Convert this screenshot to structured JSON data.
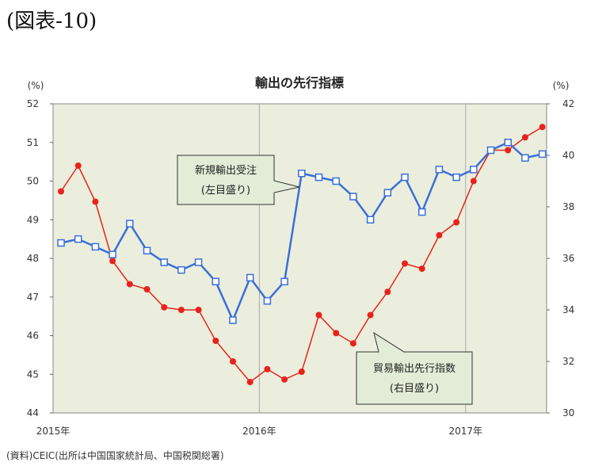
{
  "figure_label": "(図表-10)",
  "source": "(資料)CEIC(出所は中国国家統計局、中国税関総署)",
  "colors": {
    "plot_bg": "#ebeedd",
    "series_left": "#3b6fd8",
    "series_right": "#e8231d",
    "callout_bg": "#e2ecd7",
    "gridline": "#aaaaaa"
  },
  "chart_data": {
    "type": "line",
    "title": "輸出の先行指標",
    "y_left_unit": "(%)",
    "y_right_unit": "(%)",
    "y_left_lim": [
      44,
      52
    ],
    "y_left_ticks": [
      "44",
      "45",
      "46",
      "47",
      "48",
      "49",
      "50",
      "51",
      "52"
    ],
    "y_right_lim": [
      30,
      42
    ],
    "y_right_ticks": [
      "30",
      "32",
      "34",
      "36",
      "38",
      "40",
      "42"
    ],
    "x_labels": [
      "2015年",
      "2016年",
      "2017年"
    ],
    "x_label_month_index": [
      0,
      12,
      24
    ],
    "vertical_gridlines_at_month_index": [
      12,
      24
    ],
    "series": [
      {
        "name": "新規輸出受注",
        "axis": "left",
        "marker": "hollow-square",
        "callout": [
          "新規輸出受注",
          "(左目盛り)"
        ],
        "values": [
          48.4,
          48.5,
          48.3,
          48.1,
          48.9,
          48.2,
          47.9,
          47.7,
          47.9,
          47.4,
          46.4,
          47.5,
          46.9,
          47.4,
          50.2,
          50.1,
          50.0,
          49.6,
          49.0,
          49.7,
          50.1,
          49.2,
          50.3,
          50.1,
          50.3,
          50.8,
          51.0,
          50.6,
          50.7
        ]
      },
      {
        "name": "貿易輸出先行指数",
        "axis": "right",
        "marker": "filled-circle",
        "callout": [
          "貿易輸出先行指数",
          "(右目盛り)"
        ],
        "values": [
          38.6,
          39.6,
          38.2,
          35.9,
          35.0,
          34.8,
          34.1,
          34.0,
          34.0,
          32.8,
          32.0,
          31.2,
          31.7,
          31.3,
          31.6,
          33.8,
          33.1,
          32.7,
          33.8,
          34.7,
          35.8,
          35.6,
          36.9,
          37.4,
          39.0,
          40.2,
          40.2,
          40.7,
          41.1
        ]
      }
    ]
  }
}
